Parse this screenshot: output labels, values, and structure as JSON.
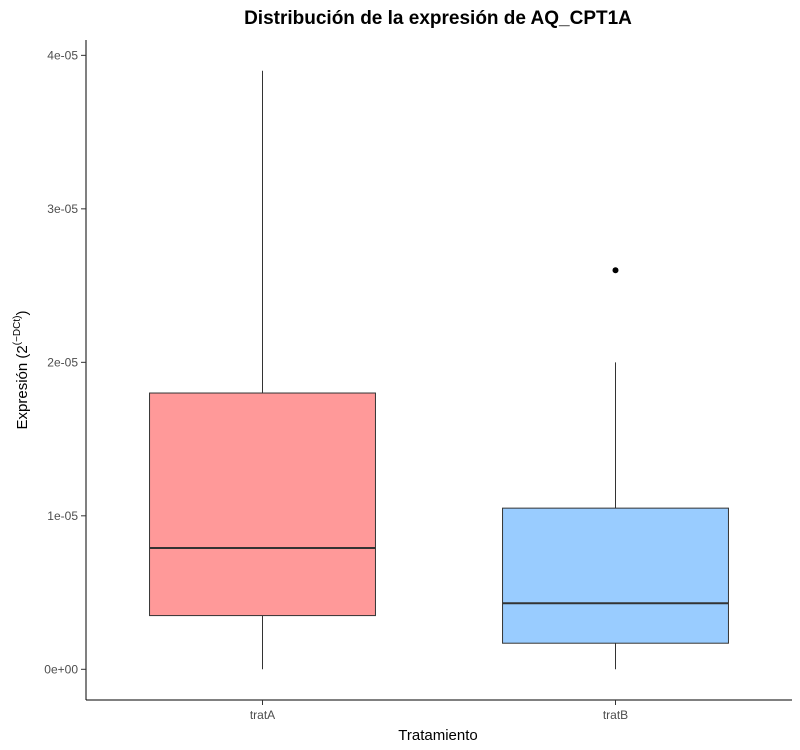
{
  "chart_data": {
    "type": "boxplot",
    "title": "Distribución de la expresión de AQ_CPT1A",
    "xlabel": "Tratamiento",
    "ylabel": {
      "main": "Expresión (2",
      "superscript": "(−DCt)",
      "close": ")"
    },
    "categories": [
      "tratA",
      "tratB"
    ],
    "ylim": [
      -2e-06,
      4.1e-05
    ],
    "yticks": [
      0,
      1e-05,
      2e-05,
      3e-05,
      4e-05
    ],
    "ytick_labels": [
      "0e+00",
      "1e-05",
      "2e-05",
      "3e-05",
      "4e-05"
    ],
    "grid": false,
    "boxes": [
      {
        "name": "tratA",
        "min": 0.0,
        "q1": 3.5e-06,
        "median": 7.9e-06,
        "q3": 1.8e-05,
        "max": 3.9e-05,
        "outliers": [],
        "fill": "#ff9999"
      },
      {
        "name": "tratB",
        "min": 0.0,
        "q1": 1.7e-06,
        "median": 4.3e-06,
        "q3": 1.05e-05,
        "max": 2e-05,
        "outliers": [
          2.6e-05
        ],
        "fill": "#99ccff"
      }
    ]
  }
}
